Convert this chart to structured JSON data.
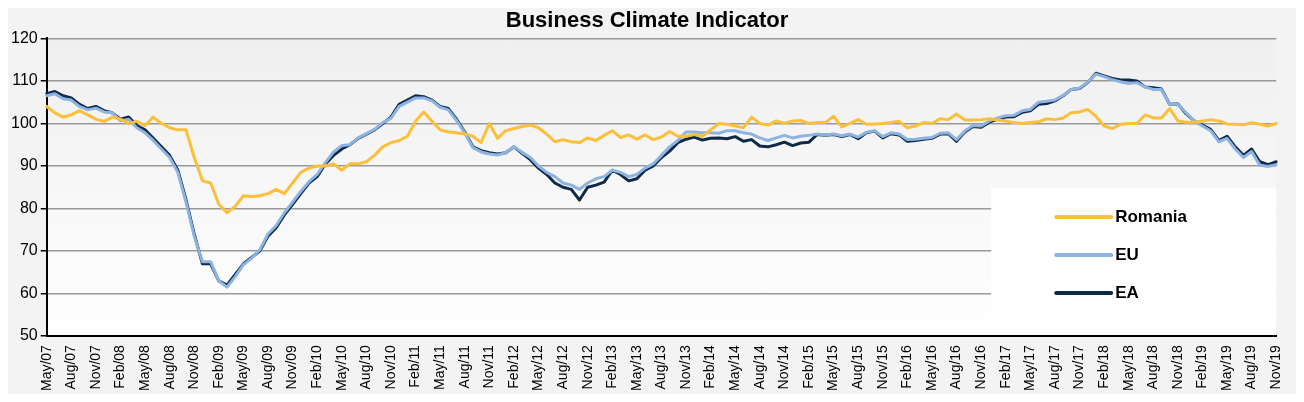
{
  "chart_data": {
    "type": "line",
    "title": "Business Climate Indicator",
    "categories": [
      "May/07",
      null,
      null,
      "Aug/07",
      null,
      null,
      "Nov/07",
      null,
      null,
      "Feb/08",
      null,
      null,
      "May/08",
      null,
      null,
      "Aug/08",
      null,
      null,
      "Nov/08",
      null,
      null,
      "Feb/09",
      null,
      null,
      "May/09",
      null,
      null,
      "Aug/09",
      null,
      null,
      "Nov/09",
      null,
      null,
      "Feb/10",
      null,
      null,
      "May/10",
      null,
      null,
      "Aug/10",
      null,
      null,
      "Nov/10",
      null,
      null,
      "Feb/11",
      null,
      null,
      "May/11",
      null,
      null,
      "Aug/11",
      null,
      null,
      "Nov/11",
      null,
      null,
      "Feb/12",
      null,
      null,
      "May/12",
      null,
      null,
      "Aug/12",
      null,
      null,
      "Nov/12",
      null,
      null,
      "Feb/13",
      null,
      null,
      "May/13",
      null,
      null,
      "Aug/13",
      null,
      null,
      "Nov/13",
      null,
      null,
      "Feb/14",
      null,
      null,
      "May/14",
      null,
      null,
      "Aug/14",
      null,
      null,
      "Nov/14",
      null,
      null,
      "Feb/15",
      null,
      null,
      "May/15",
      null,
      null,
      "Aug/15",
      null,
      null,
      "Nov/15",
      null,
      null,
      "Feb/16",
      null,
      null,
      "May/16",
      null,
      null,
      "Aug/16",
      null,
      null,
      "Nov/16",
      null,
      null,
      "Feb/17",
      null,
      null,
      "May/17",
      null,
      null,
      "Aug/17",
      null,
      null,
      "Nov/17",
      null,
      null,
      "Feb/18",
      null,
      null,
      "May/18",
      null,
      null,
      "Aug/18",
      null,
      null,
      "Nov/18",
      null,
      null,
      "Feb/19",
      null,
      null,
      "May/19",
      null,
      null,
      "Aug/19",
      null,
      null,
      "Nov/19"
    ],
    "series": [
      {
        "name": "Romania",
        "color": "#fbbf3a",
        "values": [
          104,
          102.5,
          101.5,
          102,
          103,
          102,
          101,
          100.5,
          101.5,
          101,
          100,
          100.5,
          99.5,
          101.5,
          100,
          99,
          98.5,
          98.5,
          92,
          86.5,
          86,
          81,
          79,
          80.5,
          83,
          82.8,
          83,
          83.5,
          84.5,
          83.5,
          86,
          88.5,
          89.5,
          90,
          90,
          90.5,
          89,
          90.5,
          90.5,
          91,
          92.5,
          94.5,
          95.5,
          96,
          97,
          100.5,
          102.7,
          100.5,
          98.5,
          98,
          97.8,
          97.5,
          97,
          95.5,
          100,
          96.5,
          98.3,
          98.8,
          99.3,
          99.6,
          99,
          97.5,
          95.7,
          96.2,
          95.7,
          95.5,
          96.6,
          96,
          97.2,
          98.3,
          96.7,
          97.3,
          96.3,
          97.3,
          96.2,
          96.8,
          98.1,
          97,
          97,
          97.4,
          97,
          98.5,
          100,
          99.8,
          99.4,
          99,
          101.5,
          100,
          99.6,
          100.6,
          100,
          100.6,
          100.7,
          100,
          100.2,
          100.2,
          101.7,
          99.2,
          100,
          100.9,
          99.8,
          99.9,
          100,
          100.2,
          100.5,
          99,
          99.4,
          100.2,
          100,
          101.1,
          100.9,
          102.2,
          100.8,
          100.8,
          100.9,
          101.1,
          100.8,
          100.6,
          100.2,
          100,
          100.2,
          100.4,
          101.1,
          100.9,
          101.3,
          102.5,
          102.7,
          103.3,
          101.7,
          99.4,
          98.8,
          99.8,
          100,
          100,
          102,
          101.3,
          101.3,
          103.5,
          100.6,
          100.3,
          100.3,
          100.6,
          100.9,
          100.6,
          99.9,
          99.8,
          99.7,
          100.2,
          99.8,
          99.4,
          100
        ]
      },
      {
        "name": "EU",
        "color": "#8db3e2",
        "values": [
          106.5,
          107,
          105.8,
          105.5,
          104,
          103.2,
          103.6,
          102.7,
          102.5,
          100.6,
          101,
          99,
          97.8,
          96,
          94,
          92,
          88.5,
          81.5,
          73.5,
          67.5,
          67.5,
          63,
          61.5,
          64,
          66.8,
          68.3,
          70.3,
          74,
          76,
          79,
          81.5,
          84,
          86.3,
          88,
          90.8,
          93.3,
          94.8,
          95,
          96.6,
          97.6,
          98.6,
          100.2,
          101.2,
          104,
          105,
          106,
          106,
          105.3,
          103.8,
          103.2,
          100.7,
          97.8,
          94.3,
          93.3,
          92.8,
          92.6,
          93.1,
          94.6,
          93.2,
          92,
          90,
          88.5,
          87.5,
          86,
          85.5,
          84.5,
          86,
          87,
          87.5,
          89,
          88.5,
          87.5,
          88,
          89.5,
          90.5,
          92.5,
          94.5,
          96,
          98,
          98,
          97.8,
          97.8,
          97.7,
          98.3,
          98.3,
          97.8,
          97.5,
          96.6,
          96,
          96.6,
          97.2,
          96.6,
          97,
          97.2,
          97.5,
          97.3,
          97.5,
          97.1,
          97.5,
          96.8,
          97.9,
          98.3,
          96.9,
          97.8,
          97.5,
          96.2,
          96.3,
          96.5,
          96.7,
          97.7,
          97.8,
          96.2,
          98.2,
          99.5,
          99.4,
          100.6,
          101.3,
          101.8,
          101.9,
          103,
          103.3,
          105,
          105.2,
          105.5,
          106.6,
          108,
          108.3,
          109.7,
          111.6,
          111,
          110.3,
          109.8,
          109.4,
          109.6,
          108.6,
          108,
          108,
          104.5,
          104.5,
          102.5,
          100.6,
          99.4,
          98.3,
          95.7,
          96.5,
          94,
          92,
          93.4,
          90.2,
          89.9,
          90.3
        ]
      },
      {
        "name": "EA",
        "color": "#0f2a47",
        "values": [
          107,
          107.5,
          106.5,
          106,
          104.5,
          103.5,
          104,
          103,
          102.5,
          101,
          101.5,
          99.5,
          98.5,
          96.5,
          94.5,
          92.5,
          89,
          82,
          74,
          67,
          67,
          63,
          62,
          64.5,
          67,
          68.5,
          70,
          73.5,
          75.5,
          78.5,
          81,
          83.5,
          86,
          87.5,
          90.5,
          92.5,
          94,
          95,
          96.5,
          97.5,
          98.5,
          100,
          101.5,
          104.5,
          105.5,
          106.5,
          106.3,
          105.5,
          104,
          103.5,
          101,
          98,
          94.5,
          93.6,
          93.1,
          92.8,
          93.1,
          94.5,
          93,
          91.5,
          89.5,
          88,
          86,
          85,
          84.5,
          82,
          85,
          85.5,
          86.2,
          89,
          88,
          86.5,
          87,
          89,
          90,
          92,
          93.5,
          95.5,
          96.3,
          96.8,
          96.1,
          96.5,
          96.6,
          96.4,
          96.9,
          95.8,
          96.2,
          94.7,
          94.5,
          95,
          95.6,
          94.8,
          95.4,
          95.6,
          97.4,
          97.2,
          97.4,
          96.9,
          97.4,
          96.4,
          97.8,
          98.2,
          96.6,
          97.6,
          97.3,
          95.8,
          96,
          96.3,
          96.5,
          97.5,
          97.6,
          95.8,
          98,
          99.3,
          99.1,
          100.3,
          101,
          101.5,
          101.6,
          102.6,
          103,
          104.5,
          104.7,
          105.3,
          106.5,
          108,
          108.2,
          109.6,
          111.8,
          111.2,
          110.6,
          110.2,
          110.2,
          110,
          108.6,
          108.4,
          108.1,
          104.5,
          104.6,
          102.3,
          100.6,
          99.6,
          98.6,
          96,
          97,
          94.5,
          92.5,
          94,
          91,
          90.3,
          91
        ]
      }
    ],
    "ylim": [
      50,
      120
    ],
    "yticks": [
      50,
      60,
      70,
      80,
      90,
      100,
      110,
      120
    ],
    "grid": "y",
    "legend": "bottom right",
    "marker": "none",
    "line_style": "solid"
  }
}
